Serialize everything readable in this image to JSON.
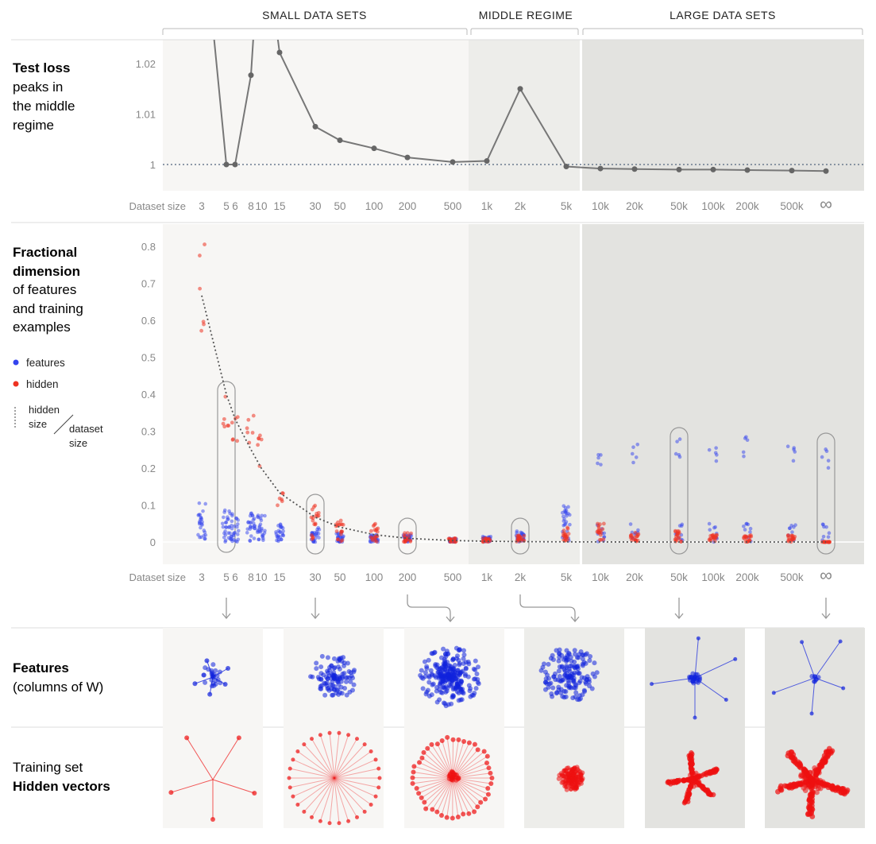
{
  "regimes": {
    "small": "SMALL DATA SETS",
    "middle": "MIDDLE REGIME",
    "large": "LARGE DATA SETS"
  },
  "panel_labels": {
    "loss_bold": "Test loss",
    "loss_rest": [
      "peaks in",
      "the middle",
      "regime"
    ],
    "dim_bold": [
      "Fractional",
      "dimension"
    ],
    "dim_rest": [
      "of features",
      "and training",
      "examples"
    ],
    "features_bold": "Features",
    "features_rest": "(columns of W)",
    "hidden_line1": "Training set",
    "hidden_bold": "Hidden vectors"
  },
  "legend": {
    "features": "features",
    "hidden": "hidden",
    "ratio_top": [
      "hidden",
      "size"
    ],
    "ratio_bottom": [
      "dataset",
      "size"
    ]
  },
  "colors": {
    "features": "#3344ee",
    "hidden": "#ee3322",
    "loss_line": "#777777",
    "small_bg": "#f7f6f4",
    "middle_bg": "#ededea",
    "large_bg": "#e3e3e0"
  },
  "chart_data": [
    {
      "type": "line",
      "title": "Test loss",
      "xlabel": "Dataset size",
      "x_ticks": [
        "3",
        "5",
        "6",
        "8",
        "10",
        "15",
        "30",
        "50",
        "100",
        "200",
        "500",
        "1k",
        "2k",
        "5k",
        "10k",
        "20k",
        "50k",
        "100k",
        "200k",
        "500k",
        "∞"
      ],
      "y_ticks": [
        "1",
        "1.01",
        "1.02"
      ],
      "ylim": [
        0.99,
        1.025
      ],
      "reference_line": 1.0,
      "series": [
        {
          "x": [
            "3",
            "5",
            "6",
            "8",
            "10",
            "15",
            "30",
            "50",
            "100",
            "200",
            "500",
            "1k",
            "2k",
            "5k",
            "10k",
            "20k",
            "50k",
            "100k",
            "200k",
            "500k",
            "∞"
          ],
          "values": [
            1.05,
            1.0,
            1.0,
            1.0177,
            1.05,
            1.0222,
            1.0075,
            1.0048,
            1.0032,
            1.0014,
            1.0005,
            1.0007,
            1.015,
            0.9996,
            0.9992,
            0.9991,
            0.999,
            0.999,
            0.9989,
            0.9988,
            0.9987
          ]
        }
      ]
    },
    {
      "type": "scatter",
      "title": "Fractional dimension of features and training examples",
      "xlabel": "Dataset size",
      "x_ticks": [
        "3",
        "5",
        "6",
        "8",
        "10",
        "15",
        "30",
        "50",
        "100",
        "200",
        "500",
        "1k",
        "2k",
        "5k",
        "10k",
        "20k",
        "50k",
        "100k",
        "200k",
        "500k",
        "∞"
      ],
      "y_ticks": [
        "0",
        "0.1",
        "0.2",
        "0.3",
        "0.4",
        "0.5",
        "0.6",
        "0.7",
        "0.8"
      ],
      "ylim": [
        -0.05,
        0.86
      ],
      "series": [
        {
          "name": "features",
          "x": [
            "3",
            "5",
            "6",
            "8",
            "10",
            "15",
            "30",
            "50",
            "100",
            "200",
            "500",
            "1k",
            "2k",
            "5k",
            "10k",
            "20k",
            "50k",
            "100k",
            "200k",
            "500k",
            "∞"
          ],
          "values": [
            0.11,
            0.09,
            0.09,
            0.08,
            0.08,
            0.05,
            0.04,
            0.03,
            0.02,
            0.02,
            0.01,
            0.015,
            0.03,
            0.1,
            0.25,
            0.27,
            0.28,
            0.27,
            0.285,
            0.265,
            0.255
          ]
        },
        {
          "name": "hidden",
          "x": [
            "3",
            "5",
            "6",
            "8",
            "10",
            "15",
            "30",
            "50",
            "100",
            "200",
            "500",
            "1k",
            "2k",
            "5k",
            "10k",
            "20k",
            "50k",
            "100k",
            "200k",
            "500k",
            "∞"
          ],
          "values": [
            0.81,
            0.41,
            0.38,
            0.36,
            0.29,
            0.14,
            0.1,
            0.06,
            0.05,
            0.025,
            0.01,
            0.01,
            0.02,
            0.04,
            0.05,
            0.03,
            0.03,
            0.02,
            0.02,
            0.02,
            0.0
          ]
        },
        {
          "name": "hidden size / dataset size",
          "x": [
            "3",
            "5",
            "6",
            "8",
            "10",
            "15",
            "30",
            "50",
            "100",
            "200",
            "500",
            "1k",
            "2k",
            "5k",
            "10k",
            "20k",
            "50k",
            "100k",
            "200k",
            "500k",
            "∞"
          ],
          "values": [
            0.667,
            0.4,
            0.333,
            0.25,
            0.2,
            0.133,
            0.067,
            0.04,
            0.02,
            0.01,
            0.004,
            0.002,
            0.001,
            0.0004,
            0.0002,
            0.0001,
            4e-05,
            2e-05,
            1e-05,
            4e-06,
            0.0
          ]
        }
      ]
    }
  ]
}
